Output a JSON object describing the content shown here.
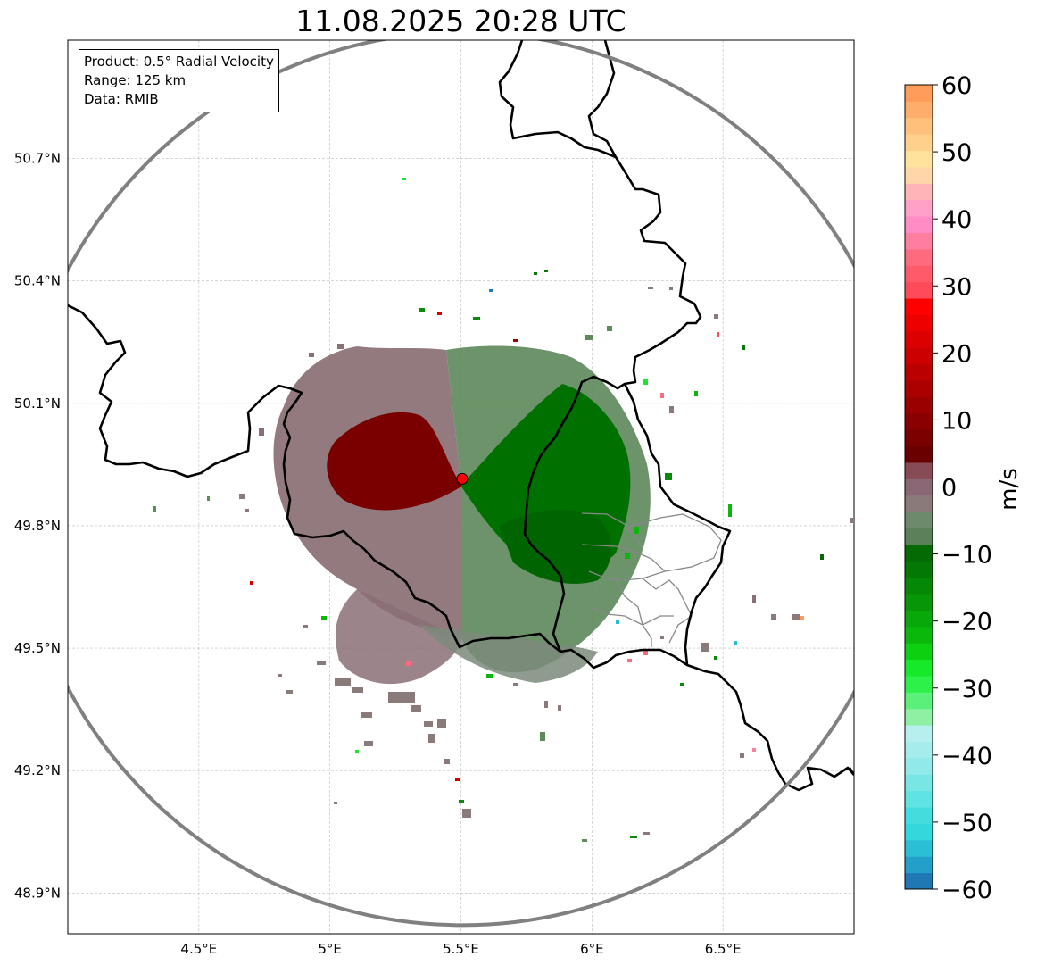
{
  "title": "11.08.2025 20:28 UTC",
  "info": {
    "product": "Product: 0.5° Radial Velocity",
    "range": "Range: 125 km",
    "source": "Data: RMIB"
  },
  "map": {
    "lon_range": [
      4.0,
      7.0
    ],
    "lat_range": [
      48.8,
      50.99
    ],
    "lat_ticks": [
      {
        "value": 48.9,
        "label": "48.9°N"
      },
      {
        "value": 49.2,
        "label": "49.2°N"
      },
      {
        "value": 49.5,
        "label": "49.5°N"
      },
      {
        "value": 49.8,
        "label": "49.8°N"
      },
      {
        "value": 50.1,
        "label": "50.1°N"
      },
      {
        "value": 50.4,
        "label": "50.4°N"
      },
      {
        "value": 50.7,
        "label": "50.7°N"
      }
    ],
    "lon_ticks": [
      {
        "value": 4.5,
        "label": "4.5°E"
      },
      {
        "value": 5.0,
        "label": "5°E"
      },
      {
        "value": 5.5,
        "label": "5.5°E"
      },
      {
        "value": 6.0,
        "label": "6°E"
      },
      {
        "value": 6.5,
        "label": "6.5°E"
      }
    ],
    "radar_site": {
      "lon": 5.505,
      "lat": 49.915
    },
    "range_km": 125,
    "colors": {
      "range_ring": "#808080",
      "border": "#000000",
      "admin": "#888888",
      "grid": "#bbbbbb",
      "site_marker": "#ff0000"
    }
  },
  "colorbar": {
    "min": -60,
    "max": 60,
    "unit": "m/s",
    "tick_values": [
      60,
      50,
      40,
      30,
      20,
      10,
      0,
      -10,
      -20,
      -30,
      -40,
      -50,
      -60
    ],
    "tick_labels": [
      "60",
      "50",
      "40",
      "30",
      "20",
      "10",
      "0",
      "−10",
      "−20",
      "−30",
      "−40",
      "−50",
      "−60"
    ],
    "bands": [
      "#1f77b4",
      "#239fca",
      "#2bbfd6",
      "#33d7dc",
      "#44dddd",
      "#5fe3e3",
      "#79e6e6",
      "#92e9ea",
      "#a7ecec",
      "#b7eeee",
      "#8ff0a4",
      "#5bf07a",
      "#2df048",
      "#16e82a",
      "#0dd010",
      "#0ab80c",
      "#08a70a",
      "#069608",
      "#058806",
      "#047805",
      "#036a04",
      "#5c8059",
      "#6e8a6c",
      "#8a7a7a",
      "#8a6775",
      "#874b55",
      "#6a0000",
      "#7a0000",
      "#8a0000",
      "#9a0000",
      "#aa0000",
      "#bb0000",
      "#cc0000",
      "#dd0000",
      "#ee0000",
      "#ff0000",
      "#ff4a5a",
      "#ff5a6a",
      "#ff6a7e",
      "#ff7ea0",
      "#ff8cc4",
      "#ffa0c8",
      "#ffb4b8",
      "#ffd6a8",
      "#ffe29c",
      "#ffd08c",
      "#ffc07c",
      "#ffad6a",
      "#ff9c5a"
    ]
  }
}
